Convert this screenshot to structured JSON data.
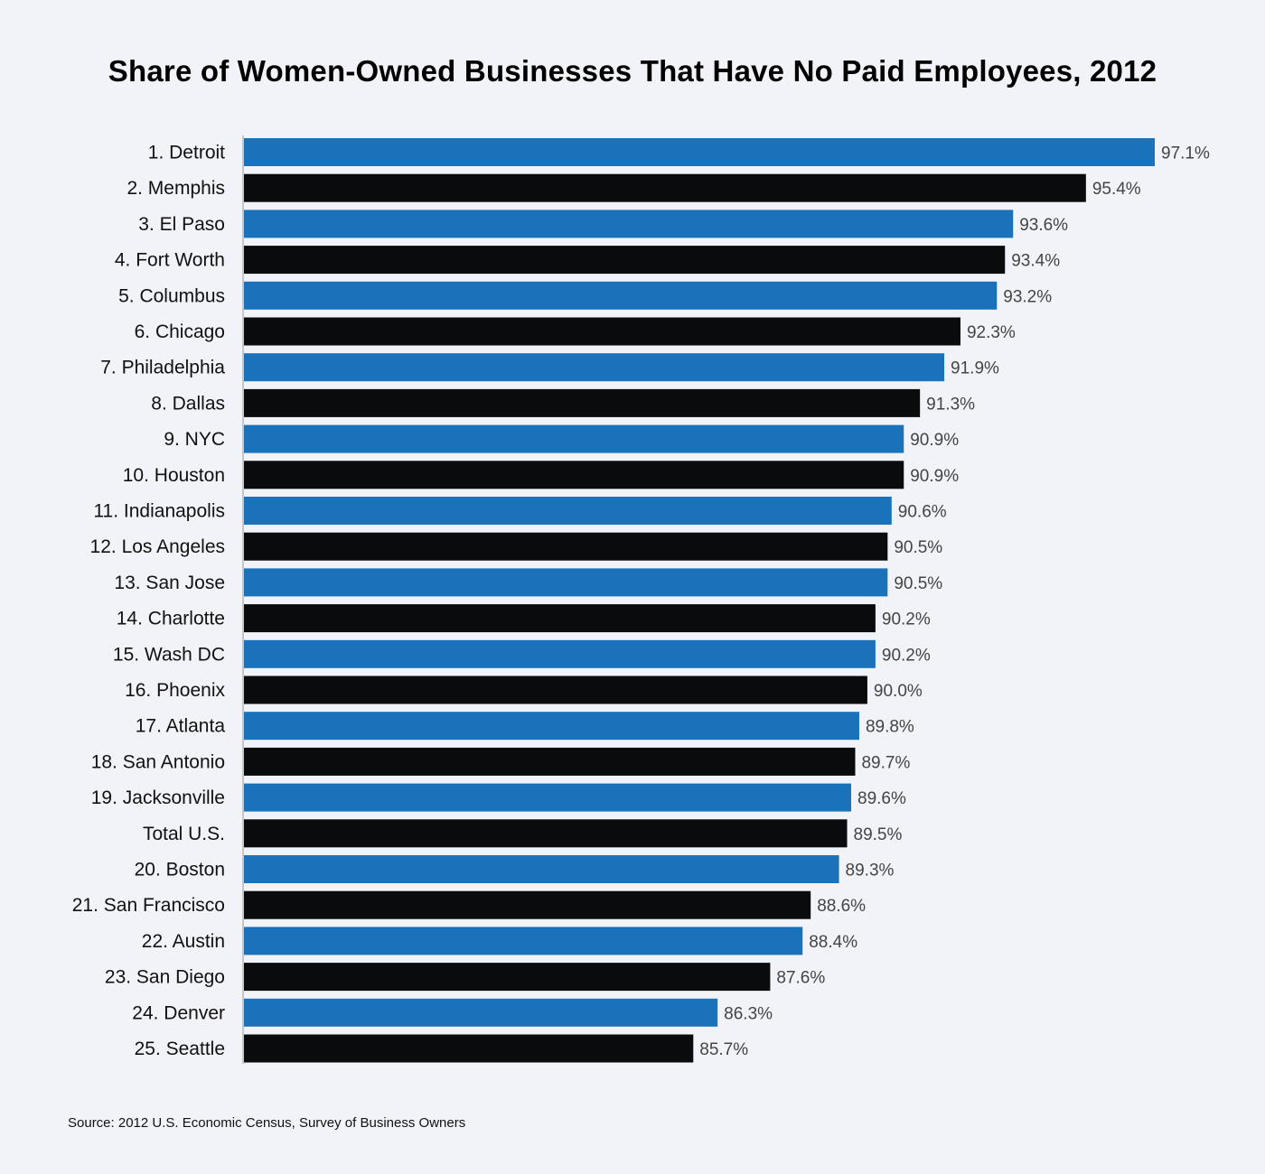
{
  "chart_data": {
    "type": "bar",
    "orientation": "horizontal",
    "title": "Share of Women-Owned Businesses That Have No Paid Employees, 2012",
    "categories": [
      "1. Detroit",
      "2. Memphis",
      "3. El Paso",
      "4. Fort Worth",
      "5. Columbus",
      "6. Chicago",
      "7. Philadelphia",
      "8. Dallas",
      "9. NYC",
      "10. Houston",
      "11. Indianapolis",
      "12. Los Angeles",
      "13. San Jose",
      "14. Charlotte",
      "15. Wash DC",
      "16. Phoenix",
      "17. Atlanta",
      "18. San Antonio",
      "19. Jacksonville",
      "Total U.S.",
      "20. Boston",
      "21. San Francisco",
      "22. Austin",
      "23. San Diego",
      "24. Denver",
      "25. Seattle"
    ],
    "values": [
      97.1,
      95.4,
      93.6,
      93.4,
      93.2,
      92.3,
      91.9,
      91.3,
      90.9,
      90.9,
      90.6,
      90.5,
      90.5,
      90.2,
      90.2,
      90.0,
      89.8,
      89.7,
      89.6,
      89.5,
      89.3,
      88.6,
      88.4,
      87.6,
      86.3,
      85.7
    ],
    "value_labels": [
      "97.1%",
      "95.4%",
      "93.6%",
      "93.4%",
      "93.2%",
      "92.3%",
      "91.9%",
      "91.3%",
      "90.9%",
      "90.9%",
      "90.6%",
      "90.5%",
      "90.5%",
      "90.2%",
      "90.2%",
      "90.0%",
      "89.8%",
      "89.7%",
      "89.6%",
      "89.5%",
      "89.3%",
      "88.6%",
      "88.4%",
      "87.6%",
      "86.3%",
      "85.7%"
    ],
    "bar_colors": [
      "#1a72bb",
      "#0a0b0d"
    ],
    "xlabel": "",
    "ylabel": "",
    "grid": false
  },
  "source": "Source: 2012 U.S. Economic Census, Survey of Business Owners"
}
